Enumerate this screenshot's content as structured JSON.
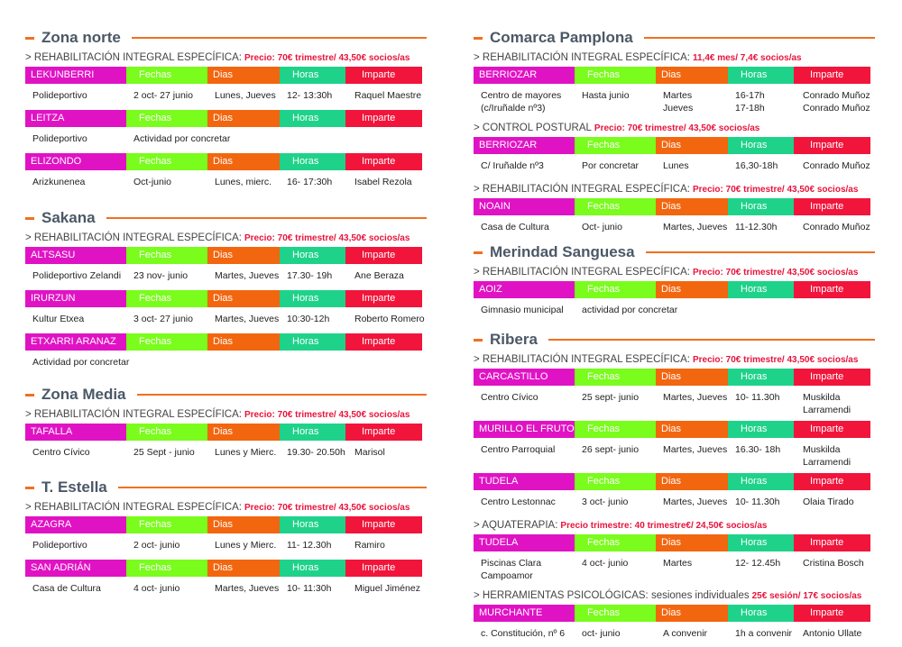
{
  "headers": {
    "fechas": "Fechas",
    "dias": "Dias",
    "horas": "Horas",
    "imparte": "Imparte"
  },
  "columns": [
    {
      "sections": [
        {
          "title": "Zona norte",
          "blocks": [
            {
              "type": "sub",
              "label": "> REHABILITACIÓN INTEGRAL ESPECÍFICA:",
              "price": "Precio: 70€ trimestre/ 43,50€ socios/as"
            },
            {
              "type": "table",
              "name": "LEKUNBERRI",
              "row": [
                "Polideportivo",
                "2 oct- 27 junio",
                "Lunes, Jueves",
                "12- 13:30h",
                "Raquel Maestre"
              ]
            },
            {
              "type": "table",
              "name": "LEITZA",
              "row": [
                "Polideportivo",
                "Actividad por concretar"
              ]
            },
            {
              "type": "table",
              "name": "ELIZONDO",
              "row": [
                "Arizkunenea",
                "Oct-junio",
                "Lunes, mierc.",
                "16- 17:30h",
                "Isabel Rezola"
              ]
            }
          ]
        },
        {
          "title": "Sakana",
          "blocks": [
            {
              "type": "sub",
              "label": "> REHABILITACIÓN INTEGRAL ESPECÍFICA:",
              "price": "Precio: 70€ trimestre/ 43,50€ socios/as"
            },
            {
              "type": "table",
              "name": "ALTSASU",
              "row": [
                "Polideportivo Zelandi",
                "23 nov- junio",
                "Martes, Jueves",
                "17.30- 19h",
                "Ane Beraza"
              ]
            },
            {
              "type": "table",
              "name": "IRURZUN",
              "row": [
                "Kultur Etxea",
                "3 oct- 27 junio",
                "Martes, Jueves",
                "10:30-12h",
                "Roberto Romero"
              ]
            },
            {
              "type": "table",
              "name": "ETXARRI ARANAZ",
              "row": [
                "Actividad por concretar"
              ]
            }
          ]
        },
        {
          "title": "Zona Media",
          "blocks": [
            {
              "type": "sub",
              "label": "> REHABILITACIÓN INTEGRAL ESPECÍFICA:",
              "price": "Precio: 70€ trimestre/ 43,50€ socios/as"
            },
            {
              "type": "table",
              "name": "TAFALLA",
              "row": [
                "Centro Cívico",
                "25 Sept - junio",
                "Lunes y Mierc.",
                "19.30- 20.50h",
                "Marisol"
              ]
            }
          ]
        },
        {
          "title": "T. Estella",
          "blocks": [
            {
              "type": "sub",
              "label": "> REHABILITACIÓN INTEGRAL ESPECÍFICA:",
              "price": "Precio: 70€ trimestre/ 43,50€ socios/as"
            },
            {
              "type": "table",
              "name": "AZAGRA",
              "row": [
                "Polideportivo",
                "2 oct- junio",
                "Lunes y Mierc.",
                "11- 12.30h",
                "Ramiro"
              ]
            },
            {
              "type": "table",
              "name": "SAN ADRIÁN",
              "row": [
                "Casa de Cultura",
                "4 oct- junio",
                "Martes, Jueves",
                "10- 11:30h",
                "Miguel Jiménez"
              ]
            }
          ]
        }
      ]
    },
    {
      "sections": [
        {
          "title": "Comarca Pamplona",
          "blocks": [
            {
              "type": "sub",
              "label": "> REHABILITACIÓN INTEGRAL ESPECÍFICA:",
              "price": "11,4€ mes/ 7,4€ socios/as"
            },
            {
              "type": "table",
              "name": "BERRIOZAR",
              "row": [
                "Centro de mayores\n(c/Iruñalde nº3)",
                "Hasta junio",
                "Martes\nJueves",
                "16-17h\n17-18h",
                "Conrado Muñoz\nConrado Muñoz"
              ]
            },
            {
              "type": "sub",
              "label": "> CONTROL POSTURAL",
              "price": "Precio: 70€ trimestre/ 43,50€ socios/as"
            },
            {
              "type": "table",
              "name": "BERRIOZAR",
              "row": [
                "C/ Iruñalde nº3",
                "Por concretar",
                "Lunes",
                "16,30-18h",
                "Conrado Muñoz"
              ]
            },
            {
              "type": "sub",
              "label": "> REHABILITACIÓN INTEGRAL ESPECÍFICA:",
              "price": "Precio: 70€ trimestre/ 43,50€ socios/as"
            },
            {
              "type": "table",
              "name": "NOAIN",
              "row": [
                "Casa de Cultura",
                "Oct- junio",
                "Martes, Jueves",
                "11-12.30h",
                "Conrado Muñoz"
              ]
            }
          ]
        },
        {
          "title": "Merindad Sanguesa",
          "blocks": [
            {
              "type": "sub",
              "label": "> REHABILITACIÓN INTEGRAL ESPECÍFICA:",
              "price": "Precio: 70€ trimestre/ 43,50€ socios/as"
            },
            {
              "type": "table",
              "name": "AOIZ",
              "row": [
                "Gimnasio municipal",
                "actividad por concretar"
              ]
            }
          ]
        },
        {
          "title": "Ribera",
          "blocks": [
            {
              "type": "sub",
              "label": "> REHABILITACIÓN INTEGRAL ESPECÍFICA:",
              "price": "Precio: 70€ trimestre/ 43,50€ socios/as"
            },
            {
              "type": "table",
              "name": "CARCASTILLO",
              "row": [
                "Centro Cívico",
                "25 sept- junio",
                "Martes, Jueves",
                "10- 11.30h",
                "Muskilda Larramendi"
              ]
            },
            {
              "type": "table",
              "name": "MURILLO EL FRUTO",
              "row": [
                "Centro Parroquial",
                "26 sept- junio",
                "Martes, Jueves",
                "16.30- 18h",
                "Muskilda Larramendi"
              ]
            },
            {
              "type": "table",
              "name": "TUDELA",
              "row": [
                "Centro Lestonnac",
                "3 oct- junio",
                "Martes, Jueves",
                "10- 11.30h",
                "Olaia Tirado"
              ]
            },
            {
              "type": "sub",
              "label": "> AQUATERAPIA:",
              "price": "Precio trimestre: 40 trimestre€/ 24,50€ socios/as"
            },
            {
              "type": "table",
              "name": "TUDELA",
              "row": [
                "Piscinas Clara Campoamor",
                "4 oct- junio",
                "Martes",
                "12- 12.45h",
                "Cristina Bosch"
              ]
            },
            {
              "type": "sub",
              "label": "> HERRAMIENTAS PSICOLÓGICAS:",
              "extra": "sesiones individuales",
              "price": "25€ sesión/ 17€ socios/as"
            },
            {
              "type": "table",
              "name": "MURCHANTE",
              "row": [
                "c. Constitución, nº 6",
                "oct- junio",
                "A convenir",
                "1h a convenir",
                "Antonio Ullate"
              ]
            }
          ]
        }
      ]
    }
  ],
  "colors": {
    "sede": "#e013c4",
    "fechas": "#7afc1c",
    "dias": "#f2660f",
    "horas": "#1fd28a",
    "imparte": "#f1153b",
    "accent": "#f07020",
    "price": "#e8143c"
  }
}
